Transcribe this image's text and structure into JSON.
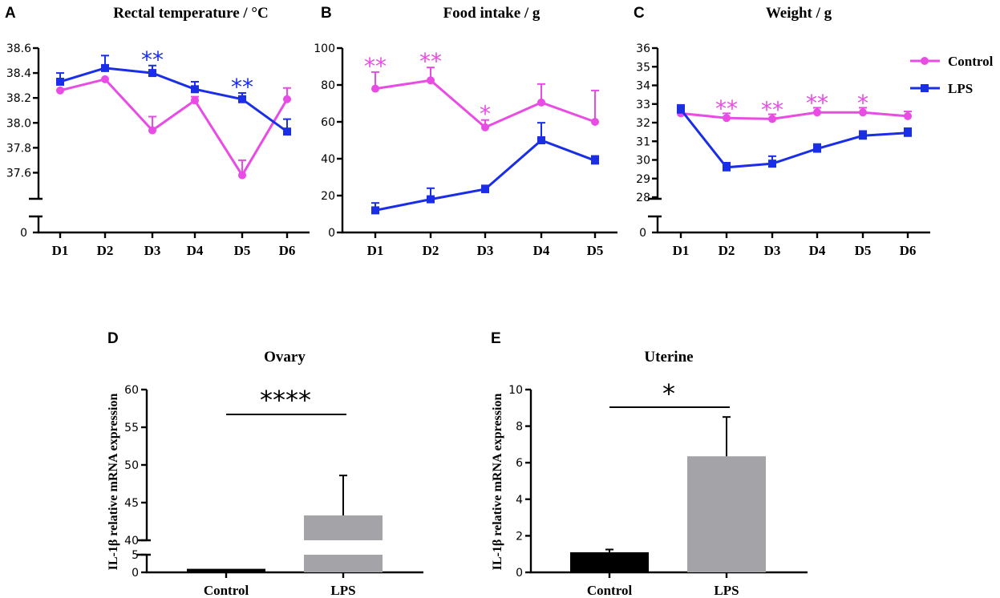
{
  "colors": {
    "control": "#e84ce4",
    "lps": "#1a2ee8",
    "control_bar": "#000000",
    "lps_bar": "#a3a3a8"
  },
  "legend": {
    "control": "Control",
    "lps": "LPS"
  },
  "chart_data": [
    {
      "panel": "A",
      "type": "line",
      "title": "Rectal temperature / °C",
      "categories": [
        "D1",
        "D2",
        "D3",
        "D4",
        "D5",
        "D6"
      ],
      "ylim": [
        37.5,
        38.6
      ],
      "yticks": [
        "38.6",
        "38.4",
        "38.2",
        "38.0",
        "37.8",
        "37.6"
      ],
      "ybreak_zero": "0",
      "series": [
        {
          "name": "Control",
          "values": [
            38.26,
            38.35,
            37.94,
            38.18,
            37.58,
            38.19
          ],
          "err": [
            0,
            0,
            0.11,
            0.03,
            0.12,
            0.09
          ]
        },
        {
          "name": "LPS",
          "values": [
            38.33,
            38.44,
            38.4,
            38.27,
            38.19,
            37.93
          ],
          "err": [
            0.07,
            0.1,
            0.06,
            0.06,
            0.05,
            0.1
          ]
        }
      ],
      "sig": [
        {
          "idx": 2,
          "text": "**",
          "series": "LPS"
        },
        {
          "idx": 4,
          "text": "**",
          "series": "LPS"
        }
      ]
    },
    {
      "panel": "B",
      "type": "line",
      "title": "Food intake / g",
      "categories": [
        "D1",
        "D2",
        "D3",
        "D4",
        "D5"
      ],
      "ylim": [
        0,
        100
      ],
      "yticks": [
        "100",
        "80",
        "60",
        "40",
        "20",
        "0"
      ],
      "series": [
        {
          "name": "Control",
          "values": [
            78,
            82.5,
            57,
            70.5,
            60
          ],
          "err": [
            9,
            7,
            4,
            10,
            17
          ]
        },
        {
          "name": "LPS",
          "values": [
            12,
            18,
            23.5,
            50,
            39
          ],
          "err": [
            4,
            6,
            2,
            9.5,
            2.5
          ]
        }
      ],
      "sig": [
        {
          "idx": 0,
          "text": "**",
          "series": "Control"
        },
        {
          "idx": 1,
          "text": "**",
          "series": "Control"
        },
        {
          "idx": 2,
          "text": "*",
          "series": "Control"
        }
      ]
    },
    {
      "panel": "C",
      "type": "line",
      "title": "Weight / g",
      "categories": [
        "D1",
        "D2",
        "D3",
        "D4",
        "D5",
        "D6"
      ],
      "ylim": [
        28,
        36
      ],
      "yticks": [
        "36",
        "35",
        "34",
        "33",
        "32",
        "31",
        "30",
        "29",
        "28"
      ],
      "ybreak_zero": "0",
      "series": [
        {
          "name": "Control",
          "values": [
            32.5,
            32.25,
            32.2,
            32.55,
            32.55,
            32.35
          ],
          "err": [
            0.2,
            0.25,
            0.25,
            0.25,
            0.25,
            0.25
          ]
        },
        {
          "name": "LPS",
          "values": [
            32.7,
            29.6,
            29.8,
            30.6,
            31.3,
            31.45
          ],
          "err": [
            0.25,
            0.25,
            0.4,
            0.25,
            0.25,
            0.25
          ]
        }
      ],
      "sig": [
        {
          "idx": 1,
          "text": "**",
          "series": "Control"
        },
        {
          "idx": 2,
          "text": "**",
          "series": "Control"
        },
        {
          "idx": 3,
          "text": "**",
          "series": "Control"
        },
        {
          "idx": 4,
          "text": "*",
          "series": "Control"
        }
      ]
    },
    {
      "panel": "D",
      "type": "bar",
      "title": "Ovary",
      "ylabel": "IL-1β  relative mRNA expression",
      "categories": [
        "Control",
        "LPS"
      ],
      "values": [
        1.0,
        43.3
      ],
      "err": [
        0.15,
        5.3
      ],
      "ylim": [
        0,
        60
      ],
      "ybreak": [
        5,
        40
      ],
      "yticks_upper": [
        "60",
        "55",
        "50",
        "45",
        "40"
      ],
      "yticks_lower": [
        "5",
        "0"
      ],
      "sig": "****"
    },
    {
      "panel": "E",
      "type": "bar",
      "title": "Uterine",
      "ylabel": "IL-1β  relative mRNA expression",
      "categories": [
        "Control",
        "LPS"
      ],
      "values": [
        1.1,
        6.35
      ],
      "err": [
        0.15,
        2.15
      ],
      "ylim": [
        0,
        10
      ],
      "yticks": [
        "10",
        "8",
        "6",
        "4",
        "2",
        "0"
      ],
      "sig": "*"
    }
  ]
}
